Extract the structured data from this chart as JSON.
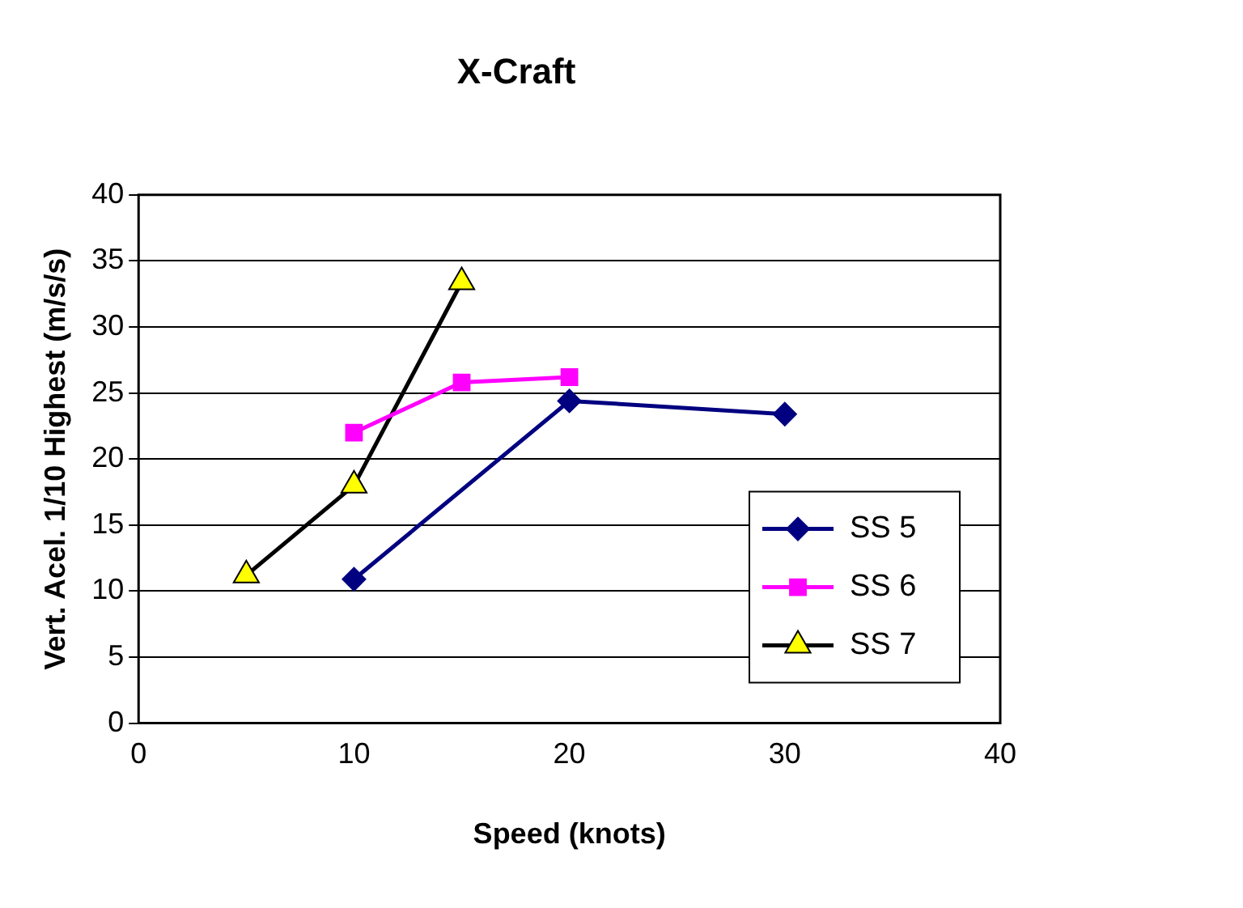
{
  "chart_data": {
    "type": "line",
    "title": "X-Craft",
    "xlabel": "Speed (knots)",
    "ylabel": "Vert. Acel. 1/10 Highest (m/s/s)",
    "xlim": [
      0,
      40
    ],
    "xticks": [
      0,
      10,
      20,
      30,
      40
    ],
    "ylim": [
      0,
      40
    ],
    "yticks": [
      0,
      5,
      10,
      15,
      20,
      25,
      30,
      35,
      40
    ],
    "grid": "y",
    "legend": "bottom right",
    "series": [
      {
        "name": "SS 5",
        "color": "#000080",
        "marker": "diamond",
        "x": [
          10,
          20,
          30
        ],
        "values": [
          10.9,
          24.4,
          23.4
        ]
      },
      {
        "name": "SS 6",
        "color": "#ff00ff",
        "marker": "square",
        "x": [
          10,
          15,
          20
        ],
        "values": [
          22.0,
          25.8,
          26.2
        ]
      },
      {
        "name": "SS 7",
        "color": "#000000",
        "colors": [
          "#ffff00",
          "#ffff00",
          "#ffff00"
        ],
        "marker": "triangle",
        "x": [
          5,
          10,
          15
        ],
        "values": [
          11.2,
          18.0,
          33.4
        ]
      }
    ]
  }
}
